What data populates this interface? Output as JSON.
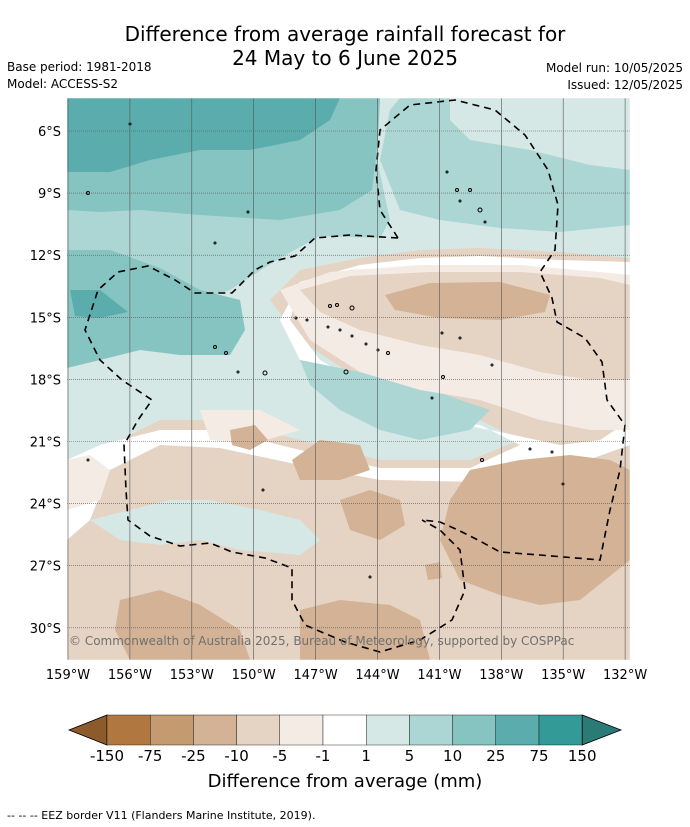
{
  "title": {
    "line1": "Difference from average rainfall forecast for",
    "line2": "24 May to 6 June 2025"
  },
  "meta": {
    "base_period": "Base period: 1981-2018",
    "model": "Model: ACCESS-S2",
    "model_run": "Model run: 10/05/2025",
    "issued": "Issued: 12/05/2025"
  },
  "map": {
    "lat_labels": [
      "6°S",
      "9°S",
      "12°S",
      "15°S",
      "18°S",
      "21°S",
      "24°S",
      "27°S",
      "30°S"
    ],
    "lon_labels": [
      "159°W",
      "156°W",
      "153°W",
      "150°W",
      "147°W",
      "144°W",
      "141°W",
      "138°W",
      "135°W",
      "132°W"
    ],
    "copyright": "© Commonwealth of Australia 2025, Bureau of Meteorology, supported by COSPPac"
  },
  "colorbar": {
    "ticks": [
      "-150",
      "-75",
      "-25",
      "-10",
      "-5",
      "-1",
      "1",
      "5",
      "10",
      "25",
      "75",
      "150"
    ],
    "colors": [
      "#8c5a2b",
      "#b07840",
      "#c49a70",
      "#d3b295",
      "#e5d3c3",
      "#f5ebe5",
      "#ffffff",
      "#d5e8e6",
      "#acd6d4",
      "#86c4c1",
      "#5aadac",
      "#339a97",
      "#2a7a76"
    ],
    "label": "Difference from average (mm)"
  },
  "footnote": "--  --  -- EEZ border V11 (Flanders Marine Institute, 2019)."
}
